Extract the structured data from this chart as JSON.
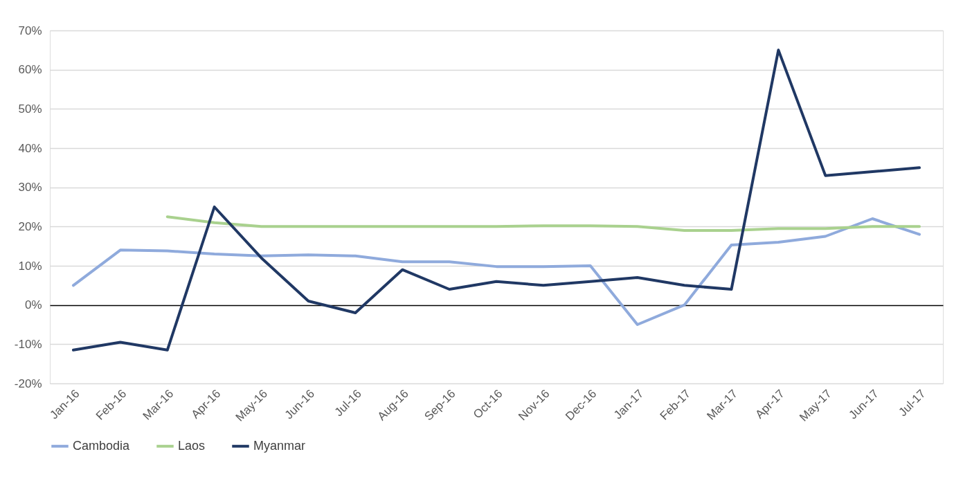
{
  "chart_data": {
    "type": "line",
    "categories": [
      "Jan-16",
      "Feb-16",
      "Mar-16",
      "Apr-16",
      "May-16",
      "Jun-16",
      "Jul-16",
      "Aug-16",
      "Sep-16",
      "Oct-16",
      "Nov-16",
      "Dec-16",
      "Jan-17",
      "Feb-17",
      "Mar-17",
      "Apr-17",
      "May-17",
      "Jun-17",
      "Jul-17"
    ],
    "series": [
      {
        "name": "Cambodia",
        "color": "#8faadc",
        "values": [
          5,
          14,
          13.8,
          13,
          12.5,
          12.8,
          12.5,
          11,
          11,
          9.8,
          9.8,
          10,
          -5,
          0,
          15.3,
          16,
          17.5,
          22,
          18
        ]
      },
      {
        "name": "Laos",
        "color": "#a9d18e",
        "values": [
          null,
          null,
          22.5,
          21,
          20,
          20,
          20,
          20,
          20,
          20,
          20.2,
          20.2,
          20,
          19,
          19,
          19.5,
          19.5,
          20,
          20
        ]
      },
      {
        "name": "Myanmar",
        "color": "#203864",
        "values": [
          -11.5,
          -9.5,
          -11.5,
          25,
          12,
          1,
          -2,
          9,
          4,
          6,
          5,
          6,
          7,
          5,
          4,
          65,
          33,
          34,
          35
        ]
      }
    ],
    "ylim": [
      -20,
      70
    ],
    "yticks": [
      {
        "value": -20,
        "label": "-20%"
      },
      {
        "value": -10,
        "label": "-10%"
      },
      {
        "value": 0,
        "label": "0%"
      },
      {
        "value": 10,
        "label": "10%"
      },
      {
        "value": 20,
        "label": "20%"
      },
      {
        "value": 30,
        "label": "30%"
      },
      {
        "value": 40,
        "label": "40%"
      },
      {
        "value": 50,
        "label": "50%"
      },
      {
        "value": 60,
        "label": "60%"
      },
      {
        "value": 70,
        "label": "70%"
      }
    ],
    "grid": "y",
    "legend": "bottom",
    "marker": "none",
    "line_style": "solid"
  }
}
